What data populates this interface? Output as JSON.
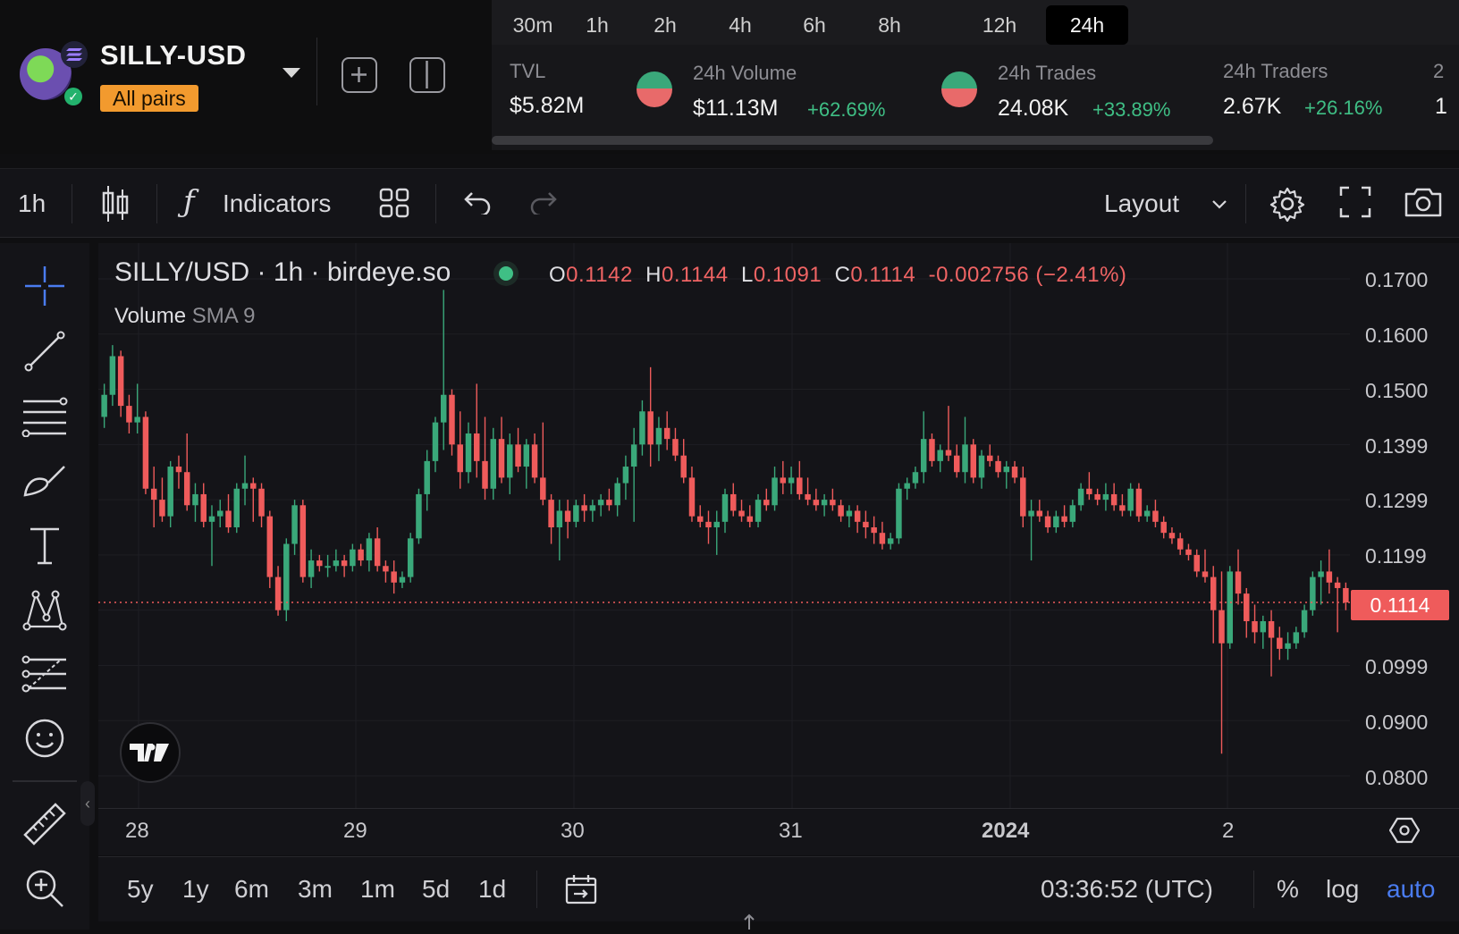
{
  "header": {
    "pair_name": "SILLY-USD",
    "all_pairs_label": "All pairs",
    "timeframes": [
      "30m",
      "1h",
      "2h",
      "4h",
      "6h",
      "8h",
      "12h",
      "24h"
    ],
    "active_timeframe": "24h",
    "stats": {
      "tvl": {
        "label": "TVL",
        "value": "$5.82M"
      },
      "volume": {
        "label": "24h Volume",
        "value": "$11.13M",
        "change": "+62.69%"
      },
      "trades": {
        "label": "24h Trades",
        "value": "24.08K",
        "change": "+33.89%"
      },
      "traders": {
        "label": "24h Traders",
        "value": "2.67K",
        "change": "+26.16%"
      },
      "overflow_label": "2",
      "overflow_value": "1"
    }
  },
  "toolbar": {
    "interval": "1h",
    "indicators_label": "Indicators",
    "layout_label": "Layout"
  },
  "chart": {
    "legend_title": "SILLY/USD · 1h · birdeye.so",
    "ohlc": {
      "o_label": "O",
      "o": "0.1142",
      "h_label": "H",
      "h": "0.1144",
      "l_label": "L",
      "l": "0.1091",
      "c_label": "C",
      "c": "0.1114",
      "change": "-0.002756 (−2.41%)"
    },
    "volume_label": "Volume",
    "volume_sma": "SMA 9",
    "price_ticks": [
      "0.1700",
      "0.1600",
      "0.1500",
      "0.1399",
      "0.1299",
      "0.1199",
      "0.0999",
      "0.0900",
      "0.0800"
    ],
    "current_price": "0.1114",
    "time_ticks": [
      "28",
      "29",
      "30",
      "31",
      "2024",
      "2"
    ],
    "colors": {
      "up": "#3aa87a",
      "down": "#ef5b5b",
      "accent": "#4a7cf0"
    }
  },
  "bottom_bar": {
    "ranges": [
      "5y",
      "1y",
      "6m",
      "3m",
      "1m",
      "5d",
      "1d"
    ],
    "clock": "03:36:52 (UTC)",
    "percent_label": "%",
    "log_label": "log",
    "auto_label": "auto"
  },
  "chart_data": {
    "type": "candlestick",
    "title": "SILLY/USD · 1h · birdeye.so",
    "ylim": [
      0.0745,
      0.1735
    ],
    "x_tick_labels": [
      "28",
      "29",
      "30",
      "31",
      "2024",
      "2"
    ],
    "y_tick_labels": [
      "0.1700",
      "0.1600",
      "0.1500",
      "0.1399",
      "0.1299",
      "0.1199",
      "0.0999",
      "0.0900",
      "0.0800"
    ],
    "last_close": 0.1114,
    "candles": [
      {
        "o": 0.145,
        "h": 0.151,
        "l": 0.143,
        "c": 0.149
      },
      {
        "o": 0.149,
        "h": 0.158,
        "l": 0.147,
        "c": 0.156
      },
      {
        "o": 0.156,
        "h": 0.157,
        "l": 0.145,
        "c": 0.147
      },
      {
        "o": 0.147,
        "h": 0.149,
        "l": 0.142,
        "c": 0.144
      },
      {
        "o": 0.144,
        "h": 0.151,
        "l": 0.142,
        "c": 0.145
      },
      {
        "o": 0.145,
        "h": 0.146,
        "l": 0.131,
        "c": 0.132
      },
      {
        "o": 0.132,
        "h": 0.136,
        "l": 0.125,
        "c": 0.13
      },
      {
        "o": 0.13,
        "h": 0.134,
        "l": 0.126,
        "c": 0.127
      },
      {
        "o": 0.127,
        "h": 0.137,
        "l": 0.125,
        "c": 0.136
      },
      {
        "o": 0.136,
        "h": 0.138,
        "l": 0.132,
        "c": 0.135
      },
      {
        "o": 0.135,
        "h": 0.142,
        "l": 0.128,
        "c": 0.129
      },
      {
        "o": 0.129,
        "h": 0.133,
        "l": 0.126,
        "c": 0.131
      },
      {
        "o": 0.131,
        "h": 0.133,
        "l": 0.125,
        "c": 0.126
      },
      {
        "o": 0.126,
        "h": 0.129,
        "l": 0.118,
        "c": 0.127
      },
      {
        "o": 0.127,
        "h": 0.13,
        "l": 0.125,
        "c": 0.128
      },
      {
        "o": 0.128,
        "h": 0.131,
        "l": 0.124,
        "c": 0.125
      },
      {
        "o": 0.125,
        "h": 0.133,
        "l": 0.124,
        "c": 0.132
      },
      {
        "o": 0.132,
        "h": 0.138,
        "l": 0.129,
        "c": 0.133
      },
      {
        "o": 0.133,
        "h": 0.134,
        "l": 0.126,
        "c": 0.132
      },
      {
        "o": 0.132,
        "h": 0.133,
        "l": 0.125,
        "c": 0.127
      },
      {
        "o": 0.127,
        "h": 0.128,
        "l": 0.114,
        "c": 0.116
      },
      {
        "o": 0.116,
        "h": 0.118,
        "l": 0.109,
        "c": 0.11
      },
      {
        "o": 0.11,
        "h": 0.123,
        "l": 0.108,
        "c": 0.122
      },
      {
        "o": 0.122,
        "h": 0.13,
        "l": 0.12,
        "c": 0.129
      },
      {
        "o": 0.129,
        "h": 0.13,
        "l": 0.115,
        "c": 0.116
      },
      {
        "o": 0.116,
        "h": 0.121,
        "l": 0.114,
        "c": 0.119
      },
      {
        "o": 0.119,
        "h": 0.12,
        "l": 0.117,
        "c": 0.118
      },
      {
        "o": 0.118,
        "h": 0.12,
        "l": 0.116,
        "c": 0.118
      },
      {
        "o": 0.118,
        "h": 0.121,
        "l": 0.117,
        "c": 0.119
      },
      {
        "o": 0.119,
        "h": 0.12,
        "l": 0.116,
        "c": 0.118
      },
      {
        "o": 0.118,
        "h": 0.122,
        "l": 0.117,
        "c": 0.121
      },
      {
        "o": 0.121,
        "h": 0.122,
        "l": 0.118,
        "c": 0.119
      },
      {
        "o": 0.119,
        "h": 0.124,
        "l": 0.117,
        "c": 0.123
      },
      {
        "o": 0.123,
        "h": 0.125,
        "l": 0.117,
        "c": 0.118
      },
      {
        "o": 0.118,
        "h": 0.119,
        "l": 0.115,
        "c": 0.117
      },
      {
        "o": 0.117,
        "h": 0.119,
        "l": 0.113,
        "c": 0.115
      },
      {
        "o": 0.115,
        "h": 0.117,
        "l": 0.114,
        "c": 0.116
      },
      {
        "o": 0.116,
        "h": 0.124,
        "l": 0.115,
        "c": 0.123
      },
      {
        "o": 0.123,
        "h": 0.132,
        "l": 0.122,
        "c": 0.131
      },
      {
        "o": 0.131,
        "h": 0.139,
        "l": 0.128,
        "c": 0.137
      },
      {
        "o": 0.137,
        "h": 0.145,
        "l": 0.135,
        "c": 0.144
      },
      {
        "o": 0.144,
        "h": 0.168,
        "l": 0.139,
        "c": 0.149
      },
      {
        "o": 0.149,
        "h": 0.15,
        "l": 0.138,
        "c": 0.14
      },
      {
        "o": 0.14,
        "h": 0.146,
        "l": 0.132,
        "c": 0.135
      },
      {
        "o": 0.135,
        "h": 0.144,
        "l": 0.133,
        "c": 0.142
      },
      {
        "o": 0.142,
        "h": 0.151,
        "l": 0.134,
        "c": 0.137
      },
      {
        "o": 0.137,
        "h": 0.145,
        "l": 0.13,
        "c": 0.132
      },
      {
        "o": 0.132,
        "h": 0.143,
        "l": 0.13,
        "c": 0.141
      },
      {
        "o": 0.141,
        "h": 0.145,
        "l": 0.133,
        "c": 0.134
      },
      {
        "o": 0.134,
        "h": 0.142,
        "l": 0.131,
        "c": 0.14
      },
      {
        "o": 0.14,
        "h": 0.143,
        "l": 0.135,
        "c": 0.136
      },
      {
        "o": 0.136,
        "h": 0.141,
        "l": 0.132,
        "c": 0.14
      },
      {
        "o": 0.14,
        "h": 0.142,
        "l": 0.133,
        "c": 0.134
      },
      {
        "o": 0.134,
        "h": 0.144,
        "l": 0.129,
        "c": 0.13
      },
      {
        "o": 0.13,
        "h": 0.131,
        "l": 0.122,
        "c": 0.125
      },
      {
        "o": 0.125,
        "h": 0.13,
        "l": 0.119,
        "c": 0.128
      },
      {
        "o": 0.128,
        "h": 0.13,
        "l": 0.123,
        "c": 0.126
      },
      {
        "o": 0.126,
        "h": 0.13,
        "l": 0.125,
        "c": 0.129
      },
      {
        "o": 0.129,
        "h": 0.131,
        "l": 0.126,
        "c": 0.128
      },
      {
        "o": 0.128,
        "h": 0.13,
        "l": 0.126,
        "c": 0.129
      },
      {
        "o": 0.129,
        "h": 0.131,
        "l": 0.127,
        "c": 0.13
      },
      {
        "o": 0.13,
        "h": 0.132,
        "l": 0.128,
        "c": 0.129
      },
      {
        "o": 0.129,
        "h": 0.134,
        "l": 0.127,
        "c": 0.133
      },
      {
        "o": 0.133,
        "h": 0.138,
        "l": 0.13,
        "c": 0.136
      },
      {
        "o": 0.136,
        "h": 0.143,
        "l": 0.126,
        "c": 0.14
      },
      {
        "o": 0.14,
        "h": 0.148,
        "l": 0.138,
        "c": 0.146
      },
      {
        "o": 0.146,
        "h": 0.154,
        "l": 0.136,
        "c": 0.14
      },
      {
        "o": 0.14,
        "h": 0.145,
        "l": 0.137,
        "c": 0.143
      },
      {
        "o": 0.143,
        "h": 0.146,
        "l": 0.139,
        "c": 0.141
      },
      {
        "o": 0.141,
        "h": 0.143,
        "l": 0.137,
        "c": 0.138
      },
      {
        "o": 0.138,
        "h": 0.141,
        "l": 0.133,
        "c": 0.134
      },
      {
        "o": 0.134,
        "h": 0.136,
        "l": 0.126,
        "c": 0.127
      },
      {
        "o": 0.127,
        "h": 0.129,
        "l": 0.125,
        "c": 0.126
      },
      {
        "o": 0.126,
        "h": 0.128,
        "l": 0.122,
        "c": 0.125
      },
      {
        "o": 0.125,
        "h": 0.128,
        "l": 0.12,
        "c": 0.126
      },
      {
        "o": 0.126,
        "h": 0.132,
        "l": 0.124,
        "c": 0.131
      },
      {
        "o": 0.131,
        "h": 0.133,
        "l": 0.127,
        "c": 0.128
      },
      {
        "o": 0.128,
        "h": 0.13,
        "l": 0.126,
        "c": 0.127
      },
      {
        "o": 0.127,
        "h": 0.129,
        "l": 0.125,
        "c": 0.126
      },
      {
        "o": 0.126,
        "h": 0.131,
        "l": 0.125,
        "c": 0.13
      },
      {
        "o": 0.13,
        "h": 0.132,
        "l": 0.128,
        "c": 0.129
      },
      {
        "o": 0.129,
        "h": 0.136,
        "l": 0.128,
        "c": 0.134
      },
      {
        "o": 0.134,
        "h": 0.137,
        "l": 0.131,
        "c": 0.133
      },
      {
        "o": 0.133,
        "h": 0.136,
        "l": 0.131,
        "c": 0.134
      },
      {
        "o": 0.134,
        "h": 0.137,
        "l": 0.13,
        "c": 0.131
      },
      {
        "o": 0.131,
        "h": 0.134,
        "l": 0.129,
        "c": 0.13
      },
      {
        "o": 0.13,
        "h": 0.132,
        "l": 0.128,
        "c": 0.129
      },
      {
        "o": 0.129,
        "h": 0.131,
        "l": 0.127,
        "c": 0.13
      },
      {
        "o": 0.13,
        "h": 0.132,
        "l": 0.128,
        "c": 0.129
      },
      {
        "o": 0.129,
        "h": 0.13,
        "l": 0.126,
        "c": 0.127
      },
      {
        "o": 0.127,
        "h": 0.129,
        "l": 0.125,
        "c": 0.128
      },
      {
        "o": 0.128,
        "h": 0.129,
        "l": 0.124,
        "c": 0.126
      },
      {
        "o": 0.126,
        "h": 0.128,
        "l": 0.123,
        "c": 0.125
      },
      {
        "o": 0.125,
        "h": 0.127,
        "l": 0.122,
        "c": 0.124
      },
      {
        "o": 0.124,
        "h": 0.126,
        "l": 0.121,
        "c": 0.122
      },
      {
        "o": 0.122,
        "h": 0.124,
        "l": 0.121,
        "c": 0.123
      },
      {
        "o": 0.123,
        "h": 0.133,
        "l": 0.122,
        "c": 0.132
      },
      {
        "o": 0.132,
        "h": 0.134,
        "l": 0.13,
        "c": 0.133
      },
      {
        "o": 0.133,
        "h": 0.136,
        "l": 0.132,
        "c": 0.135
      },
      {
        "o": 0.135,
        "h": 0.146,
        "l": 0.133,
        "c": 0.141
      },
      {
        "o": 0.141,
        "h": 0.142,
        "l": 0.136,
        "c": 0.137
      },
      {
        "o": 0.137,
        "h": 0.14,
        "l": 0.135,
        "c": 0.139
      },
      {
        "o": 0.139,
        "h": 0.147,
        "l": 0.137,
        "c": 0.138
      },
      {
        "o": 0.138,
        "h": 0.14,
        "l": 0.134,
        "c": 0.135
      },
      {
        "o": 0.135,
        "h": 0.145,
        "l": 0.133,
        "c": 0.14
      },
      {
        "o": 0.14,
        "h": 0.141,
        "l": 0.133,
        "c": 0.134
      },
      {
        "o": 0.134,
        "h": 0.139,
        "l": 0.132,
        "c": 0.138
      },
      {
        "o": 0.138,
        "h": 0.14,
        "l": 0.136,
        "c": 0.137
      },
      {
        "o": 0.137,
        "h": 0.138,
        "l": 0.134,
        "c": 0.135
      },
      {
        "o": 0.135,
        "h": 0.137,
        "l": 0.132,
        "c": 0.136
      },
      {
        "o": 0.136,
        "h": 0.137,
        "l": 0.133,
        "c": 0.134
      },
      {
        "o": 0.134,
        "h": 0.136,
        "l": 0.125,
        "c": 0.127
      },
      {
        "o": 0.127,
        "h": 0.13,
        "l": 0.119,
        "c": 0.128
      },
      {
        "o": 0.128,
        "h": 0.13,
        "l": 0.126,
        "c": 0.127
      },
      {
        "o": 0.127,
        "h": 0.128,
        "l": 0.124,
        "c": 0.125
      },
      {
        "o": 0.125,
        "h": 0.128,
        "l": 0.124,
        "c": 0.127
      },
      {
        "o": 0.127,
        "h": 0.129,
        "l": 0.125,
        "c": 0.126
      },
      {
        "o": 0.126,
        "h": 0.13,
        "l": 0.125,
        "c": 0.129
      },
      {
        "o": 0.129,
        "h": 0.133,
        "l": 0.128,
        "c": 0.132
      },
      {
        "o": 0.132,
        "h": 0.135,
        "l": 0.13,
        "c": 0.131
      },
      {
        "o": 0.131,
        "h": 0.132,
        "l": 0.129,
        "c": 0.13
      },
      {
        "o": 0.13,
        "h": 0.133,
        "l": 0.128,
        "c": 0.131
      },
      {
        "o": 0.131,
        "h": 0.133,
        "l": 0.128,
        "c": 0.129
      },
      {
        "o": 0.129,
        "h": 0.131,
        "l": 0.127,
        "c": 0.128
      },
      {
        "o": 0.128,
        "h": 0.133,
        "l": 0.127,
        "c": 0.132
      },
      {
        "o": 0.132,
        "h": 0.133,
        "l": 0.126,
        "c": 0.127
      },
      {
        "o": 0.127,
        "h": 0.129,
        "l": 0.126,
        "c": 0.128
      },
      {
        "o": 0.128,
        "h": 0.13,
        "l": 0.125,
        "c": 0.126
      },
      {
        "o": 0.126,
        "h": 0.127,
        "l": 0.123,
        "c": 0.124
      },
      {
        "o": 0.124,
        "h": 0.125,
        "l": 0.122,
        "c": 0.123
      },
      {
        "o": 0.123,
        "h": 0.124,
        "l": 0.12,
        "c": 0.121
      },
      {
        "o": 0.121,
        "h": 0.122,
        "l": 0.119,
        "c": 0.12
      },
      {
        "o": 0.12,
        "h": 0.121,
        "l": 0.116,
        "c": 0.117
      },
      {
        "o": 0.117,
        "h": 0.121,
        "l": 0.115,
        "c": 0.116
      },
      {
        "o": 0.116,
        "h": 0.118,
        "l": 0.104,
        "c": 0.11
      },
      {
        "o": 0.11,
        "h": 0.117,
        "l": 0.084,
        "c": 0.104
      },
      {
        "o": 0.104,
        "h": 0.118,
        "l": 0.103,
        "c": 0.117
      },
      {
        "o": 0.117,
        "h": 0.121,
        "l": 0.111,
        "c": 0.113
      },
      {
        "o": 0.113,
        "h": 0.114,
        "l": 0.105,
        "c": 0.108
      },
      {
        "o": 0.108,
        "h": 0.111,
        "l": 0.104,
        "c": 0.106
      },
      {
        "o": 0.106,
        "h": 0.109,
        "l": 0.103,
        "c": 0.108
      },
      {
        "o": 0.108,
        "h": 0.11,
        "l": 0.098,
        "c": 0.105
      },
      {
        "o": 0.105,
        "h": 0.107,
        "l": 0.101,
        "c": 0.103
      },
      {
        "o": 0.103,
        "h": 0.106,
        "l": 0.101,
        "c": 0.104
      },
      {
        "o": 0.104,
        "h": 0.107,
        "l": 0.103,
        "c": 0.106
      },
      {
        "o": 0.106,
        "h": 0.111,
        "l": 0.105,
        "c": 0.11
      },
      {
        "o": 0.11,
        "h": 0.117,
        "l": 0.109,
        "c": 0.116
      },
      {
        "o": 0.116,
        "h": 0.119,
        "l": 0.111,
        "c": 0.117
      },
      {
        "o": 0.117,
        "h": 0.121,
        "l": 0.113,
        "c": 0.115
      },
      {
        "o": 0.115,
        "h": 0.116,
        "l": 0.106,
        "c": 0.114
      },
      {
        "o": 0.114,
        "h": 0.115,
        "l": 0.11,
        "c": 0.1114
      }
    ]
  }
}
